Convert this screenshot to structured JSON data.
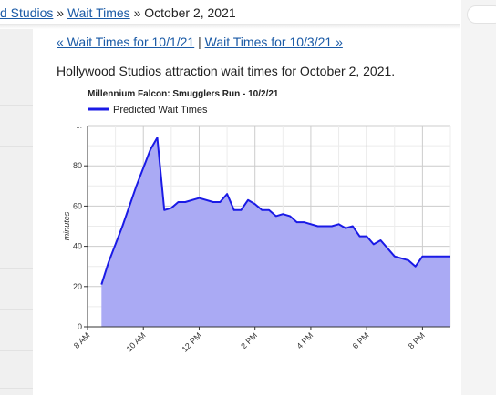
{
  "header": {
    "breadcrumb": [
      {
        "label": "d Studios",
        "link": true
      },
      {
        "label": "»",
        "link": false
      },
      {
        "label": "Wait Times",
        "link": true
      },
      {
        "label": "»",
        "link": false
      },
      {
        "label": "October 2, 2021",
        "link": false
      }
    ]
  },
  "nav": {
    "prev_label": "« Wait Times for 10/1/21",
    "separator": "|",
    "next_label": "Wait Times for 10/3/21 »"
  },
  "description": "Hollywood Studios attraction wait times for October 2, 2021.",
  "chart_data": {
    "type": "area",
    "title": "Millennium Falcon: Smugglers Run - 10/2/21",
    "legend": "Predicted Wait Times",
    "legend_position": "top-left",
    "ylabel": "minutes",
    "xlabel": "",
    "ylim": [
      0,
      100
    ],
    "yticks": [
      0,
      20,
      40,
      60,
      80
    ],
    "ytick_top_label": "...",
    "xticks": [
      {
        "label": "8 AM",
        "hour": 8
      },
      {
        "label": "10 AM",
        "hour": 10
      },
      {
        "label": "12 PM",
        "hour": 12
      },
      {
        "label": "2 PM",
        "hour": 14
      },
      {
        "label": "4 PM",
        "hour": 16
      },
      {
        "label": "6 PM",
        "hour": 18
      },
      {
        "label": "8 PM",
        "hour": 20
      }
    ],
    "xlim": [
      "8:00",
      "21:00"
    ],
    "grid": true,
    "colors": {
      "line": "#1a1ae6",
      "fill": "#aaaaf4"
    },
    "points": [
      {
        "x": "8:30",
        "y": 21
      },
      {
        "x": "8:45",
        "y": 32
      },
      {
        "x": "9:15",
        "y": 50
      },
      {
        "x": "9:45",
        "y": 70
      },
      {
        "x": "10:15",
        "y": 88
      },
      {
        "x": "10:30",
        "y": 94
      },
      {
        "x": "10:45",
        "y": 58
      },
      {
        "x": "11:00",
        "y": 59
      },
      {
        "x": "11:15",
        "y": 62
      },
      {
        "x": "11:30",
        "y": 62
      },
      {
        "x": "12:00",
        "y": 64
      },
      {
        "x": "12:30",
        "y": 62
      },
      {
        "x": "12:45",
        "y": 62
      },
      {
        "x": "13:00",
        "y": 66
      },
      {
        "x": "13:15",
        "y": 58
      },
      {
        "x": "13:30",
        "y": 58
      },
      {
        "x": "13:45",
        "y": 63
      },
      {
        "x": "14:00",
        "y": 61
      },
      {
        "x": "14:15",
        "y": 58
      },
      {
        "x": "14:30",
        "y": 58
      },
      {
        "x": "14:45",
        "y": 55
      },
      {
        "x": "15:00",
        "y": 56
      },
      {
        "x": "15:15",
        "y": 55
      },
      {
        "x": "15:30",
        "y": 52
      },
      {
        "x": "15:45",
        "y": 52
      },
      {
        "x": "16:15",
        "y": 50
      },
      {
        "x": "16:45",
        "y": 50
      },
      {
        "x": "17:00",
        "y": 51
      },
      {
        "x": "17:15",
        "y": 49
      },
      {
        "x": "17:30",
        "y": 50
      },
      {
        "x": "17:45",
        "y": 45
      },
      {
        "x": "18:00",
        "y": 45
      },
      {
        "x": "18:15",
        "y": 41
      },
      {
        "x": "18:30",
        "y": 43
      },
      {
        "x": "19:00",
        "y": 35
      },
      {
        "x": "19:30",
        "y": 33
      },
      {
        "x": "19:45",
        "y": 30
      },
      {
        "x": "20:00",
        "y": 35
      },
      {
        "x": "20:30",
        "y": 35
      },
      {
        "x": "21:00",
        "y": 35
      }
    ]
  }
}
